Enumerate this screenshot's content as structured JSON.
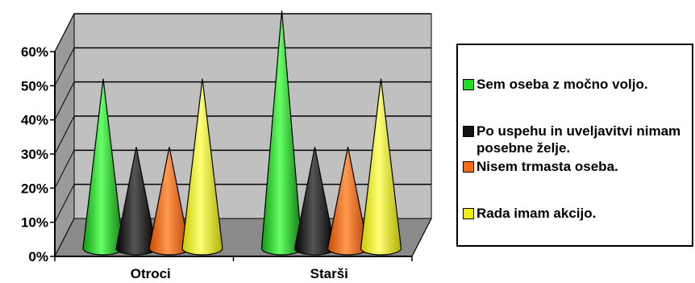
{
  "chart_data": {
    "type": "bar",
    "bar_shape": "cone-3d",
    "categories": [
      "Otroci",
      "Starši"
    ],
    "series": [
      {
        "name": "Sem oseba z močno voljo.",
        "color": "#22dd22",
        "values": [
          40,
          60
        ]
      },
      {
        "name": "Po uspehu in uveljavitvi nimam posebne želje.",
        "color": "#111111",
        "values": [
          20,
          20
        ]
      },
      {
        "name": "Nisem trmasta oseba.",
        "color": "#ff6a10",
        "values": [
          20,
          20
        ]
      },
      {
        "name": "Rada imam akcijo.",
        "color": "#f0f000",
        "values": [
          40,
          40
        ]
      }
    ],
    "y_ticks": [
      "0%",
      "10%",
      "20%",
      "30%",
      "40%",
      "50%",
      "60%"
    ],
    "ylim": [
      0,
      60
    ],
    "y_unit": "%",
    "grid": true,
    "wall_color": "#c0c0c0",
    "legend_position": "right"
  }
}
